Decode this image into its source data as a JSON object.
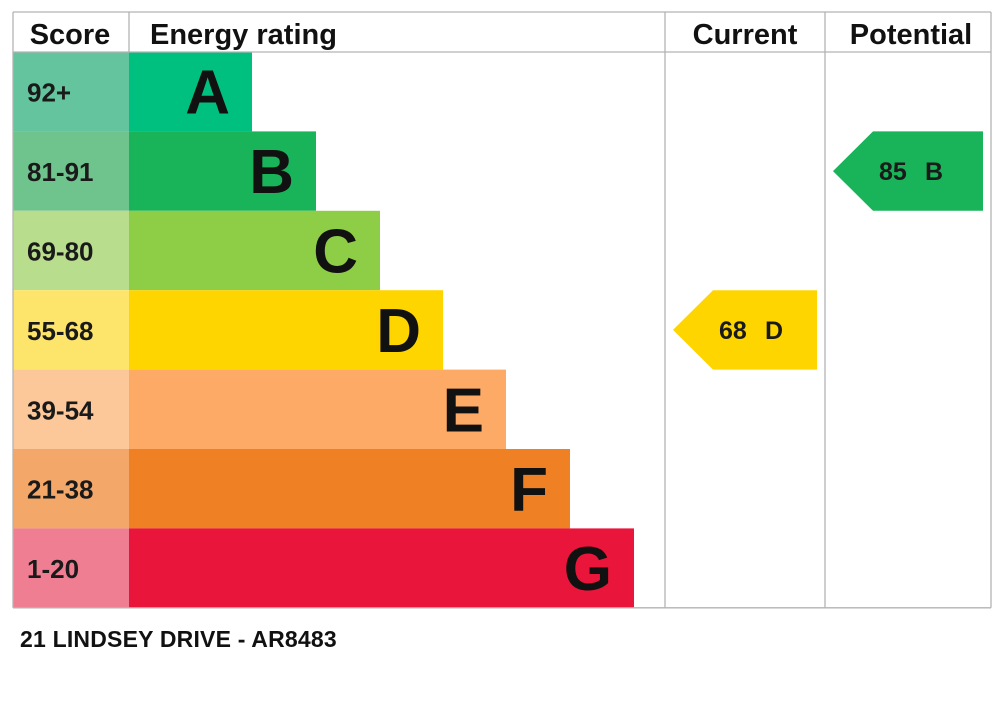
{
  "chart_data": {
    "type": "bar",
    "headers": {
      "score": "Score",
      "rating": "Energy rating",
      "current": "Current",
      "potential": "Potential"
    },
    "bands": [
      {
        "score": "92+",
        "letter": "A",
        "color": "#00c07f",
        "score_bg": "#63c49e"
      },
      {
        "score": "81-91",
        "letter": "B",
        "color": "#19b459",
        "score_bg": "#6fc48e"
      },
      {
        "score": "69-80",
        "letter": "C",
        "color": "#8dce46",
        "score_bg": "#b8dd8c"
      },
      {
        "score": "55-68",
        "letter": "D",
        "color": "#ffd500",
        "score_bg": "#fde56b"
      },
      {
        "score": "39-54",
        "letter": "E",
        "color": "#fcaa65",
        "score_bg": "#fcc89a"
      },
      {
        "score": "21-38",
        "letter": "F",
        "color": "#ef8023",
        "score_bg": "#f3a869"
      },
      {
        "score": "1-20",
        "letter": "G",
        "color": "#e9153b",
        "score_bg": "#f07e92"
      }
    ],
    "current": {
      "value": 68,
      "letter": "D",
      "value_label": "68",
      "letter_label": "D"
    },
    "potential": {
      "value": 85,
      "letter": "B",
      "value_label": "85",
      "letter_label": "B"
    }
  },
  "footer": {
    "address": "21 LINDSEY DRIVE - AR8483"
  }
}
